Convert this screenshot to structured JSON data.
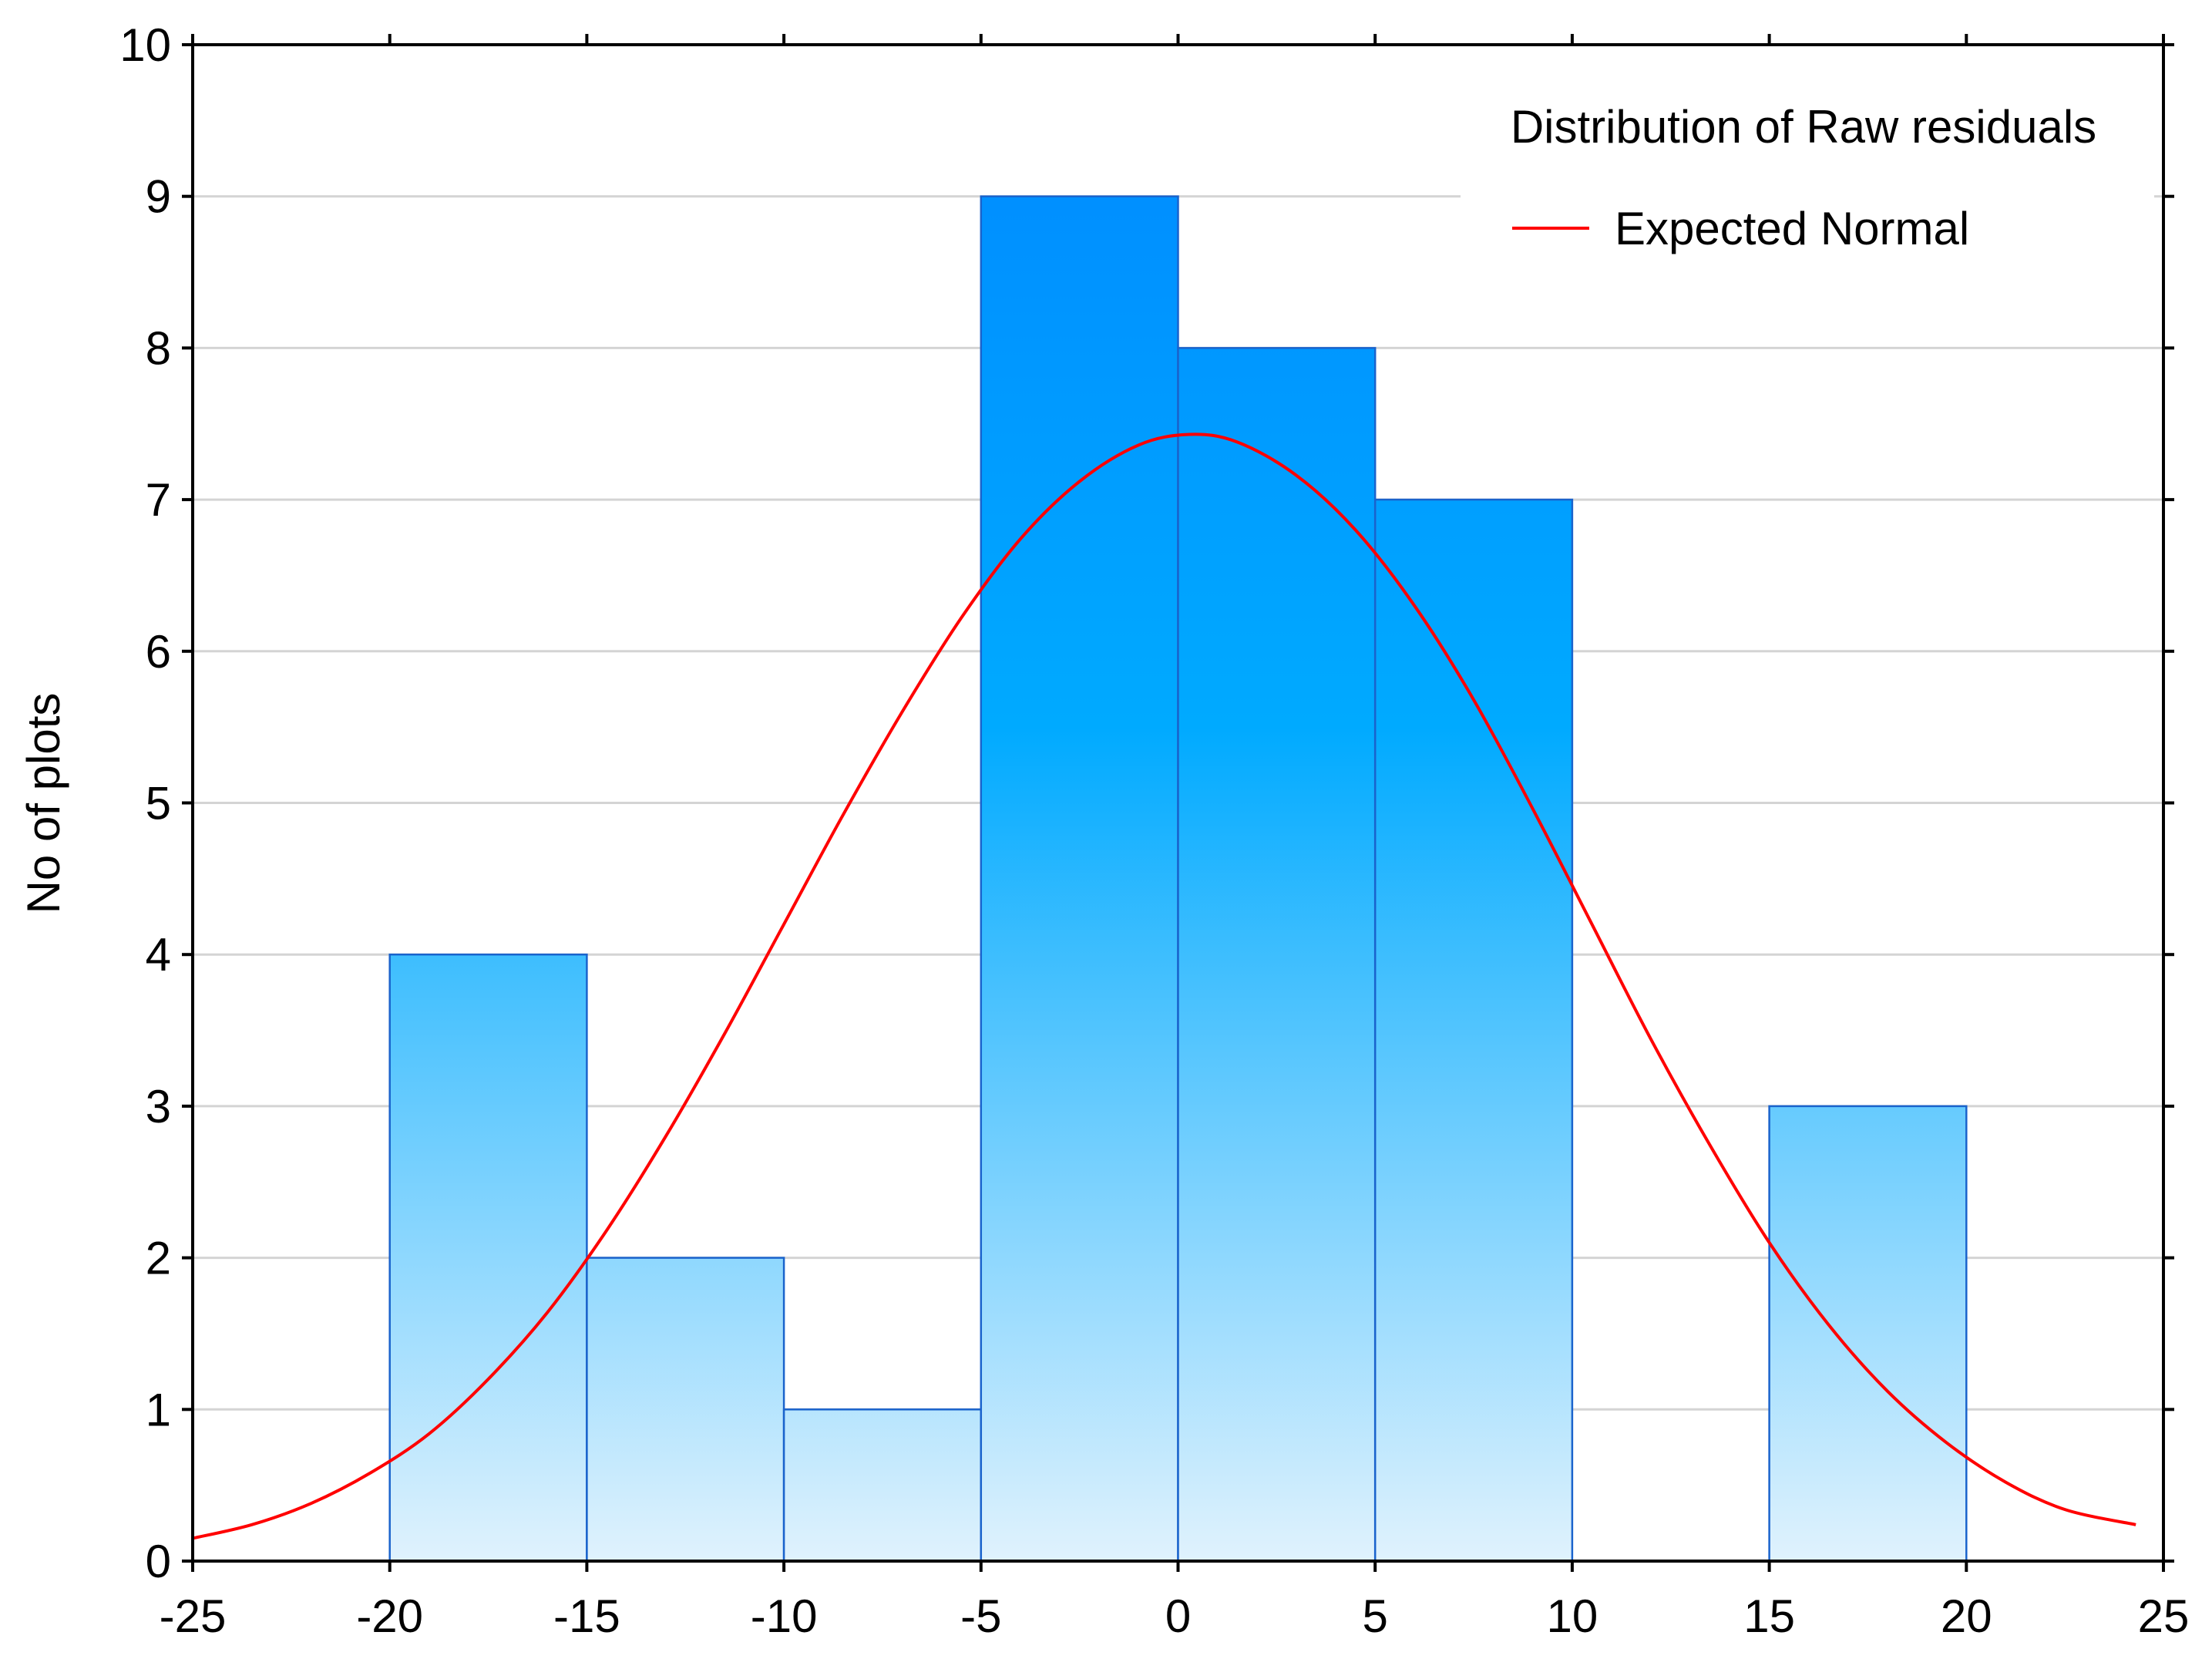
{
  "chart_data": {
    "type": "bar",
    "title": "",
    "xlabel": "",
    "ylabel": "No of plots",
    "xlim": [
      -25,
      25
    ],
    "ylim": [
      0,
      10
    ],
    "x_ticks": [
      -25,
      -20,
      -15,
      -10,
      -5,
      0,
      5,
      10,
      15,
      20,
      25
    ],
    "y_ticks": [
      0,
      1,
      2,
      3,
      4,
      5,
      6,
      7,
      8,
      9,
      10
    ],
    "grid": true,
    "bins": [
      {
        "from": -20,
        "to": -15,
        "count": 4
      },
      {
        "from": -15,
        "to": -10,
        "count": 2
      },
      {
        "from": -10,
        "to": -5,
        "count": 1
      },
      {
        "from": -5,
        "to": 0,
        "count": 9
      },
      {
        "from": 0,
        "to": 5,
        "count": 8
      },
      {
        "from": 5,
        "to": 10,
        "count": 7
      },
      {
        "from": 15,
        "to": 20,
        "count": 3
      }
    ],
    "expected_normal": {
      "name": "Expected Normal",
      "color": "#ff0000",
      "x": [
        -25,
        -23.5,
        -22,
        -20.5,
        -19,
        -17.5,
        -16,
        -14.5,
        -13,
        -11.5,
        -10,
        -8.5,
        -7,
        -5.5,
        -4,
        -2.5,
        -1,
        0.3,
        1.5,
        3,
        4.5,
        6,
        7.5,
        9,
        10.5,
        12,
        13.5,
        15,
        16.5,
        18,
        19.5,
        21,
        22.5,
        24.3
      ],
      "y": [
        0.15,
        0.24,
        0.38,
        0.58,
        0.84,
        1.2,
        1.64,
        2.18,
        2.8,
        3.48,
        4.2,
        4.92,
        5.6,
        6.22,
        6.74,
        7.12,
        7.36,
        7.43,
        7.38,
        7.16,
        6.8,
        6.3,
        5.68,
        4.96,
        4.2,
        3.44,
        2.74,
        2.1,
        1.56,
        1.12,
        0.78,
        0.52,
        0.34,
        0.24
      ]
    },
    "legend": {
      "title": "Distribution of Raw residuals",
      "entries": [
        "Expected Normal"
      ],
      "position": "top-right"
    },
    "colors": {
      "bar_top": "#0088ff",
      "bar_mid": "#00aaff",
      "bar_bottom": "#e0f2fd",
      "bar_edge": "#1a63cc",
      "grid": "#d4d4d4",
      "frame": "#000000"
    }
  }
}
